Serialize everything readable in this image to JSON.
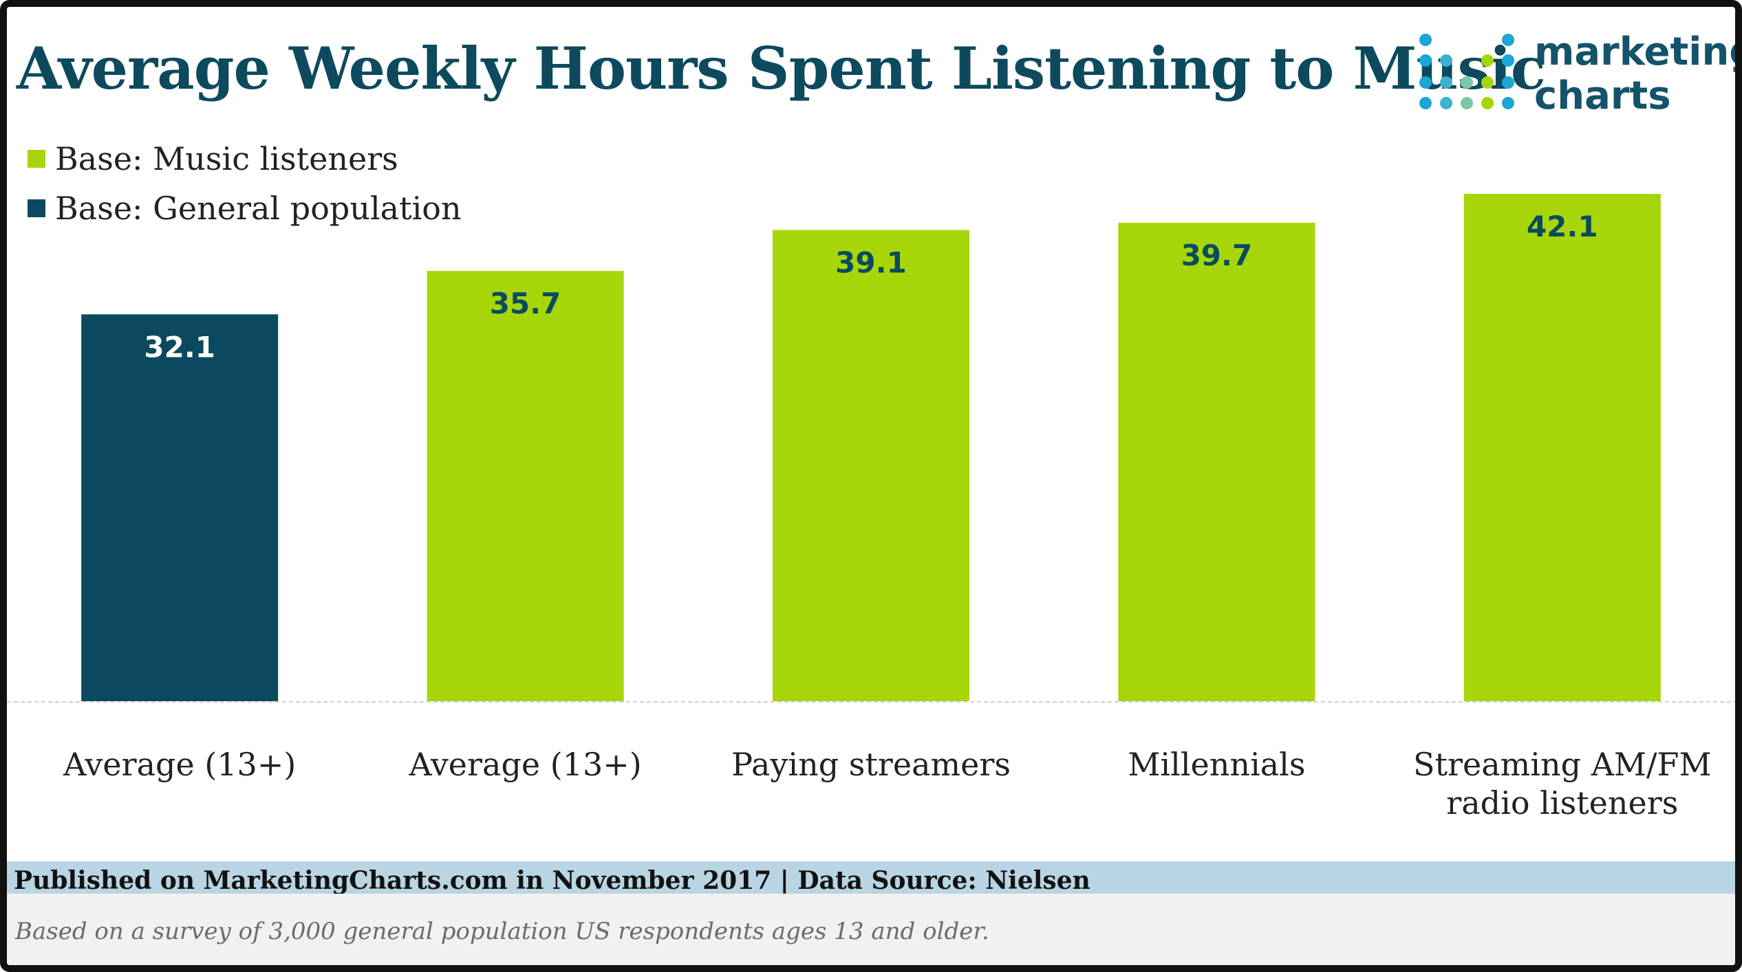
{
  "title": "Average Weekly Hours Spent Listening to Music",
  "logo": {
    "line1": "marketing",
    "line2": "charts"
  },
  "legend": [
    {
      "label": "Base: Music listeners",
      "color": "#a6d609"
    },
    {
      "label": "Base: General population",
      "color": "#0b4a5e"
    }
  ],
  "chart_data": {
    "type": "bar",
    "title": "Average Weekly Hours Spent Listening to Music",
    "categories": [
      "Average (13+)",
      "Average (13+)",
      "Paying streamers",
      "Millennials",
      "Streaming AM/FM radio listeners"
    ],
    "category_lines": [
      [
        "Average (13+)"
      ],
      [
        "Average (13+)"
      ],
      [
        "Paying streamers"
      ],
      [
        "Millennials"
      ],
      [
        "Streaming AM/FM",
        "radio listeners"
      ]
    ],
    "values": [
      32.1,
      35.7,
      39.1,
      39.7,
      42.1
    ],
    "labels": [
      "32.1",
      "35.7",
      "39.1",
      "39.7",
      "42.1"
    ],
    "series_of_bar": [
      "Base: General population",
      "Base: Music listeners",
      "Base: Music listeners",
      "Base: Music listeners",
      "Base: Music listeners"
    ],
    "bar_colors": [
      "#0b4a5e",
      "#a6d609",
      "#a6d609",
      "#a6d609",
      "#a6d609"
    ],
    "label_colors": [
      "#ffffff",
      "#0b4a5e",
      "#0b4a5e",
      "#0b4a5e",
      "#0b4a5e"
    ],
    "ylim": [
      0,
      42.1
    ],
    "xlabel": "",
    "ylabel": "",
    "grid": false,
    "legend_position": "top-left"
  },
  "footer": {
    "published": "Published on MarketingCharts.com in November 2017 | Data Source: Nielsen",
    "note": "Based on a survey of 3,000 general population US respondents ages 13 and older."
  }
}
